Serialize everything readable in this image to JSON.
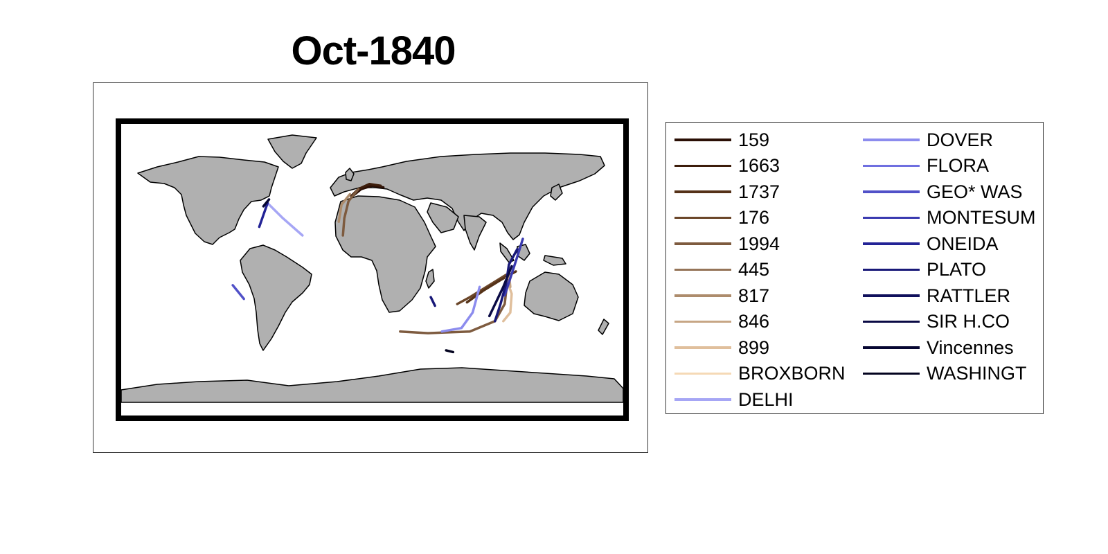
{
  "title": "Oct-1840",
  "map": {
    "projection": "equirectangular",
    "land_color": "#b0b0b0",
    "frame_color": "#000000"
  },
  "legend": {
    "columns": 2,
    "entries": [
      {
        "label": "159",
        "color": "#2a0f05"
      },
      {
        "label": "1663",
        "color": "#3d1d0b"
      },
      {
        "label": "1737",
        "color": "#553218"
      },
      {
        "label": "176",
        "color": "#6b4629"
      },
      {
        "label": "1994",
        "color": "#7e5b3f"
      },
      {
        "label": "445",
        "color": "#957458"
      },
      {
        "label": "817",
        "color": "#ad8c6c"
      },
      {
        "label": "846",
        "color": "#c7a685"
      },
      {
        "label": "899",
        "color": "#e0bf9c"
      },
      {
        "label": "BROXBORN",
        "color": "#f5d9b6"
      },
      {
        "label": "DELHI",
        "color": "#a6a6f5"
      },
      {
        "label": "DOVER",
        "color": "#8c8cee"
      },
      {
        "label": "FLORA",
        "color": "#6f6fe0"
      },
      {
        "label": "GEO* WAS",
        "color": "#5151c8"
      },
      {
        "label": "MONTESUM",
        "color": "#3a3ab0"
      },
      {
        "label": "ONEIDA",
        "color": "#232396"
      },
      {
        "label": "PLATO",
        "color": "#181878"
      },
      {
        "label": "RATTLER",
        "color": "#10105c"
      },
      {
        "label": "SIR H.CO",
        "color": "#0a0a45"
      },
      {
        "label": "Vincennes",
        "color": "#060632"
      },
      {
        "label": "WASHINGT",
        "color": "#03031f"
      }
    ]
  },
  "tracks": [
    {
      "ship": "159",
      "points": [
        [
          8,
          48
        ],
        [
          0,
          49
        ],
        [
          -8,
          47
        ],
        [
          -14,
          43
        ]
      ]
    },
    {
      "ship": "1663",
      "points": [
        [
          6,
          49
        ],
        [
          -2,
          50
        ],
        [
          -10,
          47
        ],
        [
          -15,
          43
        ]
      ]
    },
    {
      "ship": "1994",
      "points": [
        [
          -10,
          47
        ],
        [
          -17,
          40
        ],
        [
          -20,
          30
        ],
        [
          -21,
          20
        ]
      ]
    },
    {
      "ship": "817",
      "points": [
        [
          -16,
          44
        ],
        [
          -22,
          38
        ],
        [
          -24,
          28
        ]
      ]
    },
    {
      "ship": "176",
      "points": [
        [
          96,
          -3
        ],
        [
          84,
          -9
        ],
        [
          70,
          -16
        ],
        [
          61,
          -20
        ]
      ]
    },
    {
      "ship": "1737",
      "points": [
        [
          103,
          -1
        ],
        [
          92,
          -6
        ],
        [
          80,
          -12
        ],
        [
          68,
          -19
        ]
      ]
    },
    {
      "ship": "1994",
      "points": [
        [
          97,
          -6
        ],
        [
          95,
          -20
        ],
        [
          88,
          -30
        ],
        [
          70,
          -36
        ],
        [
          40,
          -37
        ],
        [
          20,
          -36
        ]
      ]
    },
    {
      "ship": "899",
      "points": [
        [
          96,
          -5
        ],
        [
          100,
          -14
        ],
        [
          99,
          -25
        ],
        [
          94,
          -30
        ]
      ]
    },
    {
      "ship": "846",
      "points": [
        [
          98,
          -2
        ],
        [
          99,
          -10
        ]
      ]
    },
    {
      "ship": "DELHI",
      "points": [
        [
          -74,
          38
        ],
        [
          -64,
          30
        ],
        [
          -50,
          20
        ]
      ]
    },
    {
      "ship": "DOVER",
      "points": [
        [
          77,
          -10
        ],
        [
          72,
          -25
        ],
        [
          64,
          -34
        ],
        [
          50,
          -36
        ]
      ]
    },
    {
      "ship": "GEO* WAS",
      "points": [
        [
          -100,
          -9
        ],
        [
          -92,
          -17
        ]
      ]
    },
    {
      "ship": "ONEIDA",
      "points": [
        [
          -75,
          39
        ],
        [
          -78,
          32
        ],
        [
          -81,
          25
        ]
      ]
    },
    {
      "ship": "MONTESUM",
      "points": [
        [
          108,
          18
        ],
        [
          103,
          5
        ],
        [
          99,
          -5
        ],
        [
          95,
          -15
        ]
      ]
    },
    {
      "ship": "PLATO",
      "points": [
        [
          104,
          12
        ],
        [
          98,
          3
        ],
        [
          96,
          -8
        ],
        [
          92,
          -20
        ],
        [
          88,
          -30
        ]
      ]
    },
    {
      "ship": "SIR H.CO",
      "points": [
        [
          100,
          2
        ],
        [
          94,
          -10
        ],
        [
          84,
          -27
        ]
      ]
    },
    {
      "ship": "WASHINGT",
      "points": [
        [
          58,
          -48
        ],
        [
          53,
          -47
        ]
      ]
    },
    {
      "ship": "PLATO",
      "points": [
        [
          42,
          -16
        ],
        [
          45,
          -21
        ]
      ]
    },
    {
      "ship": "Vincennes",
      "points": [
        [
          -78,
          37
        ],
        [
          -74,
          41
        ]
      ]
    }
  ]
}
